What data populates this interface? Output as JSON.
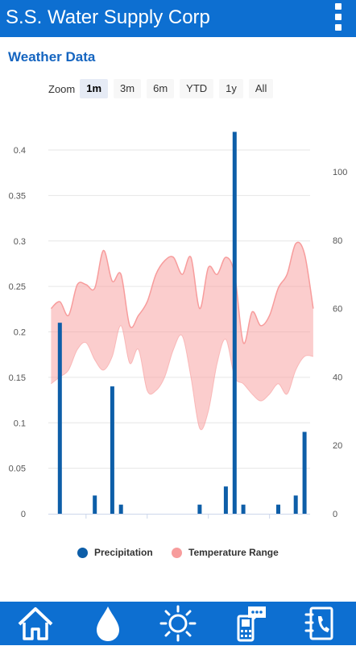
{
  "header": {
    "title": "S.S. Water Supply Corp"
  },
  "section": {
    "title": "Weather Data"
  },
  "zoom": {
    "label": "Zoom",
    "options": [
      "1m",
      "3m",
      "6m",
      "YTD",
      "1y",
      "All"
    ],
    "selected": "1m"
  },
  "legend": {
    "precipitation": "Precipitation",
    "temperature": "Temperature Range"
  },
  "colors": {
    "primary": "#0d6fd1",
    "precipitation": "#0d5ea8",
    "temperature": "#f79c9c",
    "title": "#1565c0"
  },
  "bottom_nav": [
    "home-icon",
    "water-drop-icon",
    "sun-icon",
    "phone-message-icon",
    "contact-book-icon"
  ],
  "chart_data": {
    "type": "bar",
    "x_ticks": [
      "27. Jan",
      "3. Feb",
      "10. Feb",
      "17. Feb"
    ],
    "y_left": {
      "ticks": [
        "0",
        "0.05",
        "0.1",
        "0.15",
        "0.2",
        "0.25",
        "0.3",
        "0.35",
        "0.4"
      ],
      "range": [
        0,
        0.45
      ]
    },
    "y_right": {
      "ticks": [
        "0",
        "20",
        "40",
        "60",
        "80",
        "100"
      ],
      "range": [
        0,
        108
      ]
    },
    "series": [
      {
        "name": "Precipitation",
        "type": "bar",
        "axis": "left",
        "dates": [
          "2020-01-24",
          "2020-01-28",
          "2020-01-30",
          "2020-01-31",
          "2020-02-09",
          "2020-02-12",
          "2020-02-13",
          "2020-02-14",
          "2020-02-18",
          "2020-02-20",
          "2020-02-21"
        ],
        "values": [
          0.21,
          0.02,
          0.14,
          0.01,
          0.01,
          0.03,
          0.42,
          0.01,
          0.01,
          0.02,
          0.09
        ]
      },
      {
        "name": "Temperature Range",
        "type": "arearange",
        "axis": "right",
        "dates": [
          "2020-01-23",
          "2020-01-24",
          "2020-01-25",
          "2020-01-26",
          "2020-01-27",
          "2020-01-28",
          "2020-01-29",
          "2020-01-30",
          "2020-01-31",
          "2020-02-01",
          "2020-02-02",
          "2020-02-03",
          "2020-02-04",
          "2020-02-05",
          "2020-02-06",
          "2020-02-07",
          "2020-02-08",
          "2020-02-09",
          "2020-02-10",
          "2020-02-11",
          "2020-02-12",
          "2020-02-13",
          "2020-02-14",
          "2020-02-15",
          "2020-02-16",
          "2020-02-17",
          "2020-02-18",
          "2020-02-19",
          "2020-02-20",
          "2020-02-21",
          "2020-02-22"
        ],
        "low": [
          38,
          40,
          42,
          48,
          50,
          45,
          42,
          46,
          55,
          44,
          48,
          36,
          36,
          40,
          48,
          52,
          40,
          25,
          30,
          44,
          51,
          40,
          38,
          35,
          33,
          35,
          38,
          35,
          42,
          46,
          46
        ],
        "high": [
          60,
          62,
          58,
          67,
          67,
          66,
          77,
          68,
          70,
          55,
          58,
          62,
          70,
          74,
          75,
          70,
          75,
          60,
          72,
          70,
          75,
          70,
          50,
          59,
          55,
          58,
          66,
          70,
          79,
          76,
          60
        ]
      }
    ]
  }
}
